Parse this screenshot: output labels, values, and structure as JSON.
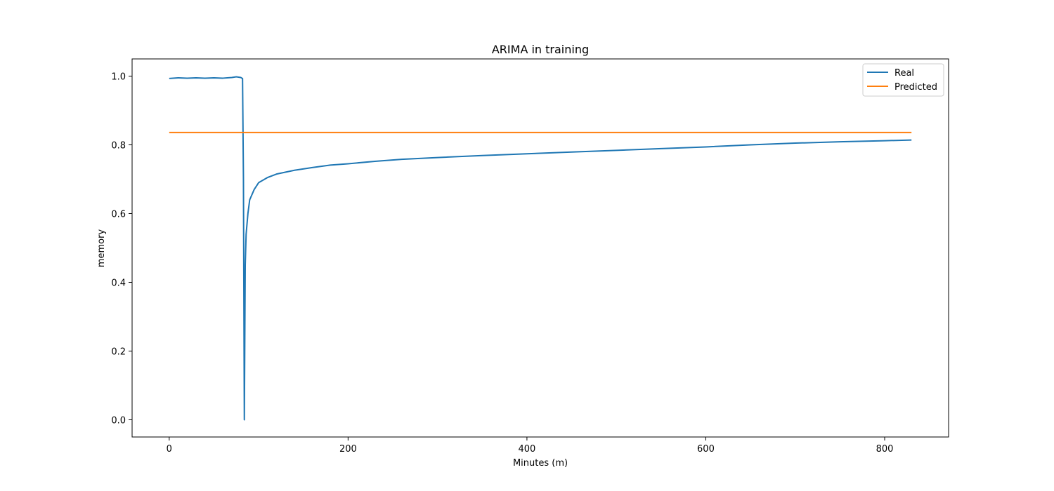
{
  "chart_data": {
    "type": "line",
    "title": "ARIMA in training",
    "xlabel": "Minutes (m)",
    "ylabel": "memory",
    "xlim": [
      -41.5,
      871.5
    ],
    "ylim": [
      -0.05,
      1.05
    ],
    "xticks": [
      0,
      200,
      400,
      600,
      800
    ],
    "yticks": [
      0.0,
      0.2,
      0.4,
      0.6,
      0.8,
      1.0
    ],
    "xtick_labels": [
      "0",
      "200",
      "400",
      "600",
      "800"
    ],
    "ytick_labels": [
      "0.0",
      "0.2",
      "0.4",
      "0.6",
      "0.8",
      "1.0"
    ],
    "grid": false,
    "legend_position": "top-right",
    "series": [
      {
        "name": "Real",
        "color": "#1f77b4",
        "x": [
          0,
          10,
          20,
          30,
          40,
          50,
          60,
          70,
          75,
          80,
          82,
          83,
          84,
          85,
          86,
          88,
          90,
          95,
          100,
          110,
          120,
          140,
          160,
          180,
          200,
          230,
          260,
          300,
          350,
          400,
          450,
          500,
          550,
          600,
          650,
          700,
          750,
          800,
          830
        ],
        "y": [
          0.993,
          0.995,
          0.994,
          0.995,
          0.994,
          0.995,
          0.994,
          0.996,
          0.998,
          0.996,
          0.993,
          0.7,
          0.0,
          0.45,
          0.54,
          0.6,
          0.64,
          0.67,
          0.69,
          0.705,
          0.715,
          0.726,
          0.734,
          0.741,
          0.745,
          0.752,
          0.758,
          0.763,
          0.769,
          0.774,
          0.779,
          0.784,
          0.789,
          0.794,
          0.8,
          0.805,
          0.809,
          0.812,
          0.814
        ]
      },
      {
        "name": "Predicted",
        "color": "#ff7f0e",
        "x": [
          0,
          830
        ],
        "y": [
          0.836,
          0.836
        ]
      }
    ]
  }
}
